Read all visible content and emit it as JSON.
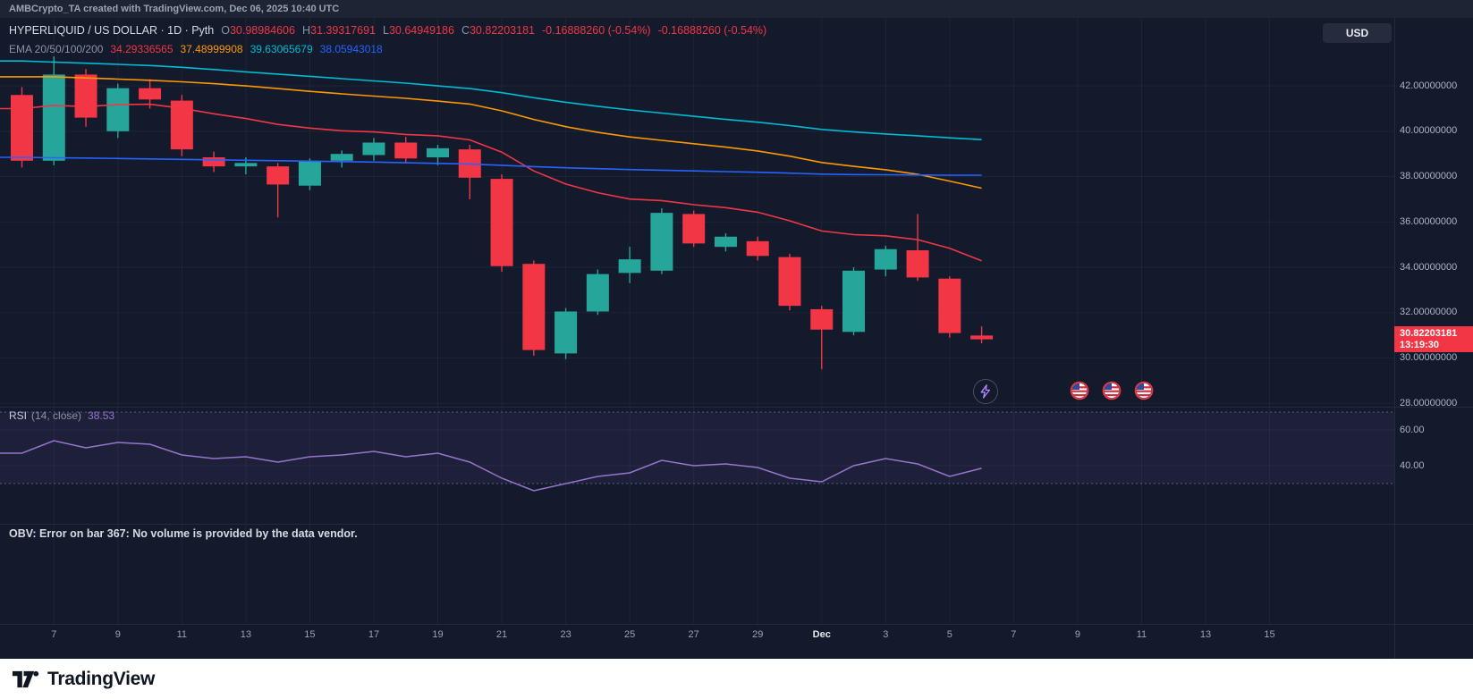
{
  "colors": {
    "up": "#26a69a",
    "down": "#f23645",
    "ema20": "#f23645",
    "ema50": "#ff9800",
    "ema100": "#00bcd4",
    "ema200": "#2962ff",
    "rsi": "#9575cd",
    "grid": "rgba(151,161,186,0.08)",
    "separator": "#242b3c"
  },
  "top_bar": {
    "text": "AMBCrypto_TA created with TradingView.com, Dec 06, 2025 10:40 UTC"
  },
  "header": {
    "title": "HYPERLIQUID / US DOLLAR · 1D · Pyth",
    "ohlc": [
      {
        "k": "O",
        "v": "30.98984606"
      },
      {
        "k": "H",
        "v": "31.39317691"
      },
      {
        "k": "L",
        "v": "30.64949186"
      },
      {
        "k": "C",
        "v": "30.82203181"
      }
    ],
    "changes": [
      "-0.16888260 (-0.54%)",
      "-0.16888260 (-0.54%)"
    ],
    "currency_button": "USD",
    "ema": {
      "label": "EMA 20/50/100/200",
      "values": [
        "34.29336565",
        "37.48999908",
        "39.63065679",
        "38.05943018"
      ]
    }
  },
  "price_tag": {
    "price": "30.82203181",
    "countdown": "13:19:30"
  },
  "rsi_legend": {
    "title": "RSI",
    "params": "(14, close)",
    "value": "38.53"
  },
  "obv": {
    "text": "OBV: Error on bar 367: No volume is provided by the data vendor."
  },
  "footer": {
    "brand": "TradingView"
  },
  "chart_data": {
    "type": "candlestick",
    "title": "HYPERLIQUID / US DOLLAR · 1D · Pyth",
    "symbol": "HYPERLIQUID / US DOLLAR",
    "interval": "1D",
    "feed": "Pyth",
    "ylim": [
      27.85,
      45.0
    ],
    "price_scale": [
      {
        "v": 42,
        "label": "42.00000000"
      },
      {
        "v": 40,
        "label": "40.00000000"
      },
      {
        "v": 38,
        "label": "38.00000000"
      },
      {
        "v": 36,
        "label": "36.00000000"
      },
      {
        "v": 34,
        "label": "34.00000000"
      },
      {
        "v": 32,
        "label": "32.00000000"
      },
      {
        "v": 30,
        "label": "30.00000000"
      },
      {
        "v": 28,
        "label": "28.00000000"
      }
    ],
    "time_scale": [
      {
        "i": 1,
        "label": "7"
      },
      {
        "i": 3,
        "label": "9"
      },
      {
        "i": 5,
        "label": "11"
      },
      {
        "i": 7,
        "label": "13"
      },
      {
        "i": 9,
        "label": "15"
      },
      {
        "i": 11,
        "label": "17"
      },
      {
        "i": 13,
        "label": "19"
      },
      {
        "i": 15,
        "label": "21"
      },
      {
        "i": 17,
        "label": "23"
      },
      {
        "i": 19,
        "label": "25"
      },
      {
        "i": 21,
        "label": "27"
      },
      {
        "i": 23,
        "label": "29"
      },
      {
        "i": 25,
        "label": "Dec",
        "major": true
      },
      {
        "i": 27,
        "label": "3"
      },
      {
        "i": 29,
        "label": "5"
      },
      {
        "i": 31,
        "label": "7"
      },
      {
        "i": 33,
        "label": "9"
      },
      {
        "i": 35,
        "label": "11"
      },
      {
        "i": 37,
        "label": "13"
      },
      {
        "i": 39,
        "label": "15"
      }
    ],
    "candles": [
      {
        "t": "Nov 6",
        "o": 41.6,
        "h": 41.95,
        "l": 38.4,
        "c": 38.7
      },
      {
        "t": "Nov 7",
        "o": 38.7,
        "h": 43.3,
        "l": 38.5,
        "c": 42.5
      },
      {
        "t": "Nov 8",
        "o": 42.5,
        "h": 42.75,
        "l": 40.2,
        "c": 40.6
      },
      {
        "t": "Nov 9",
        "o": 40.0,
        "h": 42.1,
        "l": 39.7,
        "c": 41.9
      },
      {
        "t": "Nov 10",
        "o": 41.9,
        "h": 42.3,
        "l": 41.0,
        "c": 41.4
      },
      {
        "t": "Nov 11",
        "o": 41.35,
        "h": 41.6,
        "l": 38.9,
        "c": 39.2
      },
      {
        "t": "Nov 12",
        "o": 38.85,
        "h": 39.1,
        "l": 38.2,
        "c": 38.45
      },
      {
        "t": "Nov 13",
        "o": 38.45,
        "h": 38.85,
        "l": 38.1,
        "c": 38.6
      },
      {
        "t": "Nov 14",
        "o": 38.45,
        "h": 38.6,
        "l": 36.2,
        "c": 37.65
      },
      {
        "t": "Nov 15",
        "o": 37.6,
        "h": 38.8,
        "l": 37.4,
        "c": 38.7
      },
      {
        "t": "Nov 16",
        "o": 38.7,
        "h": 39.15,
        "l": 38.4,
        "c": 39.0
      },
      {
        "t": "Nov 17",
        "o": 38.95,
        "h": 39.7,
        "l": 38.7,
        "c": 39.5
      },
      {
        "t": "Nov 18",
        "o": 39.5,
        "h": 39.75,
        "l": 38.6,
        "c": 38.8
      },
      {
        "t": "Nov 19",
        "o": 38.85,
        "h": 39.4,
        "l": 38.5,
        "c": 39.25
      },
      {
        "t": "Nov 20",
        "o": 39.2,
        "h": 39.4,
        "l": 37.0,
        "c": 37.95
      },
      {
        "t": "Nov 21",
        "o": 37.9,
        "h": 38.1,
        "l": 33.8,
        "c": 34.05
      },
      {
        "t": "Nov 22",
        "o": 34.15,
        "h": 34.3,
        "l": 30.1,
        "c": 30.35
      },
      {
        "t": "Nov 23",
        "o": 30.2,
        "h": 32.2,
        "l": 29.95,
        "c": 32.05
      },
      {
        "t": "Nov 24",
        "o": 32.05,
        "h": 33.9,
        "l": 31.9,
        "c": 33.7
      },
      {
        "t": "Nov 25",
        "o": 33.75,
        "h": 34.9,
        "l": 33.3,
        "c": 34.35
      },
      {
        "t": "Nov 26",
        "o": 33.85,
        "h": 36.6,
        "l": 33.7,
        "c": 36.4
      },
      {
        "t": "Nov 27",
        "o": 36.35,
        "h": 36.5,
        "l": 34.9,
        "c": 35.05
      },
      {
        "t": "Nov 28",
        "o": 34.9,
        "h": 35.5,
        "l": 34.7,
        "c": 35.35
      },
      {
        "t": "Nov 29",
        "o": 35.15,
        "h": 35.35,
        "l": 34.3,
        "c": 34.5
      },
      {
        "t": "Nov 30",
        "o": 34.45,
        "h": 34.6,
        "l": 32.1,
        "c": 32.3
      },
      {
        "t": "Dec 1",
        "o": 32.15,
        "h": 32.3,
        "l": 29.5,
        "c": 31.25
      },
      {
        "t": "Dec 2",
        "o": 31.15,
        "h": 34.0,
        "l": 31.0,
        "c": 33.85
      },
      {
        "t": "Dec 3",
        "o": 33.9,
        "h": 34.95,
        "l": 33.6,
        "c": 34.8
      },
      {
        "t": "Dec 4",
        "o": 34.75,
        "h": 36.35,
        "l": 33.4,
        "c": 33.55
      },
      {
        "t": "Dec 5",
        "o": 33.5,
        "h": 33.6,
        "l": 30.9,
        "c": 31.1
      },
      {
        "t": "Dec 6",
        "o": 30.98984606,
        "h": 31.39317691,
        "l": 30.64949186,
        "c": 30.82203181
      }
    ],
    "overlays": [
      {
        "name": "EMA 20",
        "color_key": "ema20",
        "values": [
          41.0,
          41.14,
          41.09,
          41.17,
          41.19,
          41.01,
          40.77,
          40.56,
          40.3,
          40.14,
          40.02,
          39.97,
          39.86,
          39.8,
          39.62,
          39.08,
          38.25,
          37.67,
          37.29,
          37.01,
          36.94,
          36.76,
          36.63,
          36.43,
          36.05,
          35.6,
          35.44,
          35.39,
          35.22,
          34.84,
          34.29
        ]
      },
      {
        "name": "EMA 50",
        "color_key": "ema50",
        "values": [
          42.4,
          42.4,
          42.35,
          42.3,
          42.25,
          42.18,
          42.1,
          42.0,
          41.88,
          41.76,
          41.65,
          41.55,
          41.45,
          41.33,
          41.2,
          40.9,
          40.52,
          40.2,
          39.95,
          39.75,
          39.6,
          39.45,
          39.3,
          39.13,
          38.9,
          38.62,
          38.45,
          38.3,
          38.1,
          37.8,
          37.49
        ]
      },
      {
        "name": "EMA 100",
        "color_key": "ema100",
        "values": [
          43.1,
          43.05,
          43.0,
          42.95,
          42.9,
          42.82,
          42.72,
          42.62,
          42.52,
          42.42,
          42.32,
          42.22,
          42.12,
          42.0,
          41.88,
          41.7,
          41.48,
          41.28,
          41.1,
          40.94,
          40.8,
          40.66,
          40.52,
          40.4,
          40.25,
          40.08,
          39.97,
          39.88,
          39.8,
          39.71,
          39.63
        ]
      },
      {
        "name": "EMA 200",
        "color_key": "ema200",
        "values": [
          38.85,
          38.83,
          38.82,
          38.8,
          38.78,
          38.76,
          38.74,
          38.72,
          38.7,
          38.68,
          38.66,
          38.64,
          38.61,
          38.58,
          38.55,
          38.5,
          38.44,
          38.39,
          38.35,
          38.31,
          38.28,
          38.25,
          38.22,
          38.19,
          38.15,
          38.11,
          38.09,
          38.08,
          38.07,
          38.06,
          38.06
        ]
      }
    ],
    "rsi": {
      "period": 14,
      "source": "close",
      "last": 38.53,
      "ylim": [
        7.5,
        72.5
      ],
      "bands": [
        70,
        30
      ],
      "grid": [
        {
          "v": 60,
          "label": "60.00"
        },
        {
          "v": 40,
          "label": "40.00"
        }
      ],
      "values": [
        47,
        54,
        50,
        53,
        52,
        46,
        44,
        45,
        42,
        45,
        46,
        48,
        45,
        47,
        42,
        33,
        26,
        30,
        34,
        36,
        43,
        40,
        41,
        39,
        33,
        31,
        40,
        44,
        41,
        34,
        38.53
      ]
    },
    "obv_error": "OBV: Error on bar 367: No volume is provided by the data vendor."
  }
}
